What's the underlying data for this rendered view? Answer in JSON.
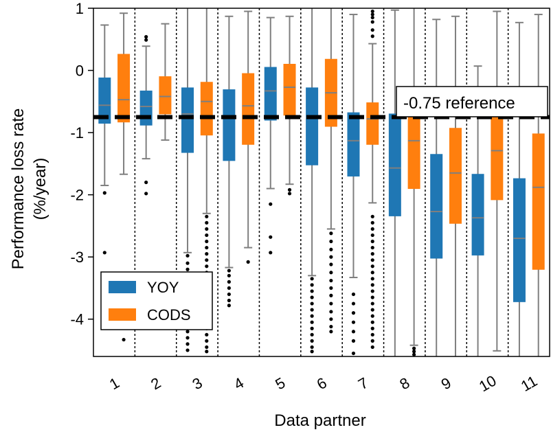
{
  "chart_data": {
    "type": "box",
    "xlabel": "Data partner",
    "ylabel": "Performance loss rate (%/year)",
    "ylabel_lines": [
      "Performance loss rate",
      "(%/year)"
    ],
    "ylim": [
      -4.6,
      1.0
    ],
    "yticks": [
      1,
      0,
      -1,
      -2,
      -3,
      -4
    ],
    "categories": [
      "1",
      "2",
      "3",
      "4",
      "5",
      "6",
      "7",
      "8",
      "9",
      "10",
      "11"
    ],
    "reference": {
      "value": -0.75,
      "label": "-0.75 reference"
    },
    "legend": {
      "position": "bottom-left",
      "entries": [
        "YOY",
        "CODS"
      ]
    },
    "colors": {
      "YOY": "#1f77b4",
      "CODS": "#ff7f0e"
    },
    "series": [
      {
        "name": "YOY",
        "boxes": [
          {
            "q1": -0.85,
            "median": -0.56,
            "q3": -0.12,
            "whisker_low": -1.85,
            "whisker_high": 0.73,
            "outliers": [
              -1.97,
              -2.93
            ]
          },
          {
            "q1": -0.88,
            "median": -0.58,
            "q3": -0.33,
            "whisker_low": -1.42,
            "whisker_high": 0.39,
            "outliers": [
              0.54,
              0.49,
              -1.8,
              -1.98
            ]
          },
          {
            "q1": -1.32,
            "median": -0.7,
            "q3": -0.28,
            "whisker_low": -2.93,
            "whisker_high": 1.0,
            "outliers": [
              -2.98,
              -3.1,
              -3.2,
              -3.3,
              -3.4,
              -3.5,
              -3.6,
              -3.7,
              -3.8,
              -3.9,
              -4.0,
              -4.1,
              -4.2,
              -4.3,
              -4.4,
              -4.5
            ]
          },
          {
            "q1": -1.45,
            "median": -0.77,
            "q3": -0.31,
            "whisker_low": -3.17,
            "whisker_high": 0.87,
            "outliers": [
              -3.22,
              -3.3,
              -3.4,
              -3.5,
              -3.6,
              -3.7,
              -3.78
            ]
          },
          {
            "q1": -0.8,
            "median": -0.33,
            "q3": 0.05,
            "whisker_low": -1.9,
            "whisker_high": 0.85,
            "outliers": [
              -2.15,
              -2.68,
              -2.93
            ]
          },
          {
            "q1": -1.52,
            "median": -0.76,
            "q3": -0.28,
            "whisker_low": -3.3,
            "whisker_high": 1.0,
            "outliers": [
              -3.35,
              -3.45,
              -3.55,
              -3.65,
              -3.75,
              -3.85,
              -3.95,
              -4.05,
              -4.15,
              -4.25,
              -4.35,
              -4.45,
              -4.52
            ]
          },
          {
            "q1": -1.7,
            "median": -1.13,
            "q3": -0.68,
            "whisker_low": -3.33,
            "whisker_high": 0.9,
            "outliers": [
              -3.6,
              -3.75,
              -3.9,
              -4.05,
              -4.2,
              -4.35,
              -4.55
            ]
          },
          {
            "q1": -2.34,
            "median": -1.57,
            "q3": -0.7,
            "whisker_low": -4.6,
            "whisker_high": 0.97,
            "outliers": []
          },
          {
            "q1": -3.02,
            "median": -2.27,
            "q3": -1.35,
            "whisker_low": -4.6,
            "whisker_high": 0.82,
            "outliers": []
          },
          {
            "q1": -2.97,
            "median": -2.37,
            "q3": -1.67,
            "whisker_low": -4.6,
            "whisker_high": 0.07,
            "outliers": []
          },
          {
            "q1": -3.72,
            "median": -2.7,
            "q3": -1.74,
            "whisker_low": -4.6,
            "whisker_high": 0.77,
            "outliers": []
          }
        ]
      },
      {
        "name": "CODS",
        "boxes": [
          {
            "q1": -0.83,
            "median": -0.47,
            "q3": 0.26,
            "whisker_low": -1.67,
            "whisker_high": 0.92,
            "outliers": [
              -4.33
            ]
          },
          {
            "q1": -0.7,
            "median": -0.42,
            "q3": -0.1,
            "whisker_low": -1.12,
            "whisker_high": 0.75,
            "outliers": []
          },
          {
            "q1": -1.04,
            "median": -0.5,
            "q3": -0.19,
            "whisker_low": -2.3,
            "whisker_high": 1.0,
            "outliers": [
              -2.35,
              -2.45,
              -2.55,
              -2.65,
              -2.75,
              -2.85,
              -2.95,
              -3.05,
              -3.15,
              -3.25,
              -3.35,
              -3.45,
              -3.55,
              -3.65,
              -3.75,
              -3.85,
              -3.95,
              -4.05,
              -4.15,
              -4.25,
              -4.35,
              -4.45,
              -4.52
            ]
          },
          {
            "q1": -1.19,
            "median": -0.57,
            "q3": -0.05,
            "whisker_low": -2.85,
            "whisker_high": 0.95,
            "outliers": [
              -3.08
            ]
          },
          {
            "q1": -0.72,
            "median": -0.27,
            "q3": 0.1,
            "whisker_low": -1.83,
            "whisker_high": 0.87,
            "outliers": [
              -1.92,
              -1.98
            ]
          },
          {
            "q1": -0.9,
            "median": -0.36,
            "q3": 0.18,
            "whisker_low": -2.55,
            "whisker_high": 1.0,
            "outliers": [
              -2.62,
              -2.75,
              -2.88,
              -3.0,
              -3.12,
              -3.25,
              -3.38,
              -3.5,
              -3.62,
              -3.75,
              -3.88,
              -4.0,
              -4.12,
              -4.2
            ]
          },
          {
            "q1": -1.19,
            "median": -0.78,
            "q3": -0.52,
            "whisker_low": -2.13,
            "whisker_high": 0.43,
            "outliers": [
              0.95,
              0.9,
              0.85,
              0.78,
              0.65,
              0.55,
              -2.35,
              -2.45,
              -2.55,
              -2.65,
              -2.75,
              -2.85,
              -2.95,
              -3.05,
              -3.15,
              -3.25,
              -3.35,
              -3.45,
              -3.55,
              -3.65,
              -3.75,
              -3.85,
              -3.95,
              -4.05,
              -4.15,
              -4.25,
              -4.35,
              -4.45
            ]
          },
          {
            "q1": -1.9,
            "median": -1.13,
            "q3": -0.68,
            "whisker_low": -4.42,
            "whisker_high": 1.0,
            "outliers": [
              -4.47,
              -4.52,
              -4.57
            ]
          },
          {
            "q1": -2.46,
            "median": -1.65,
            "q3": -0.93,
            "whisker_low": -4.6,
            "whisker_high": 0.87,
            "outliers": []
          },
          {
            "q1": -2.08,
            "median": -1.29,
            "q3": -0.65,
            "whisker_low": -4.51,
            "whisker_high": 0.95,
            "outliers": []
          },
          {
            "q1": -3.2,
            "median": -1.88,
            "q3": -1.02,
            "whisker_low": -4.6,
            "whisker_high": 0.9,
            "outliers": []
          }
        ]
      }
    ]
  }
}
